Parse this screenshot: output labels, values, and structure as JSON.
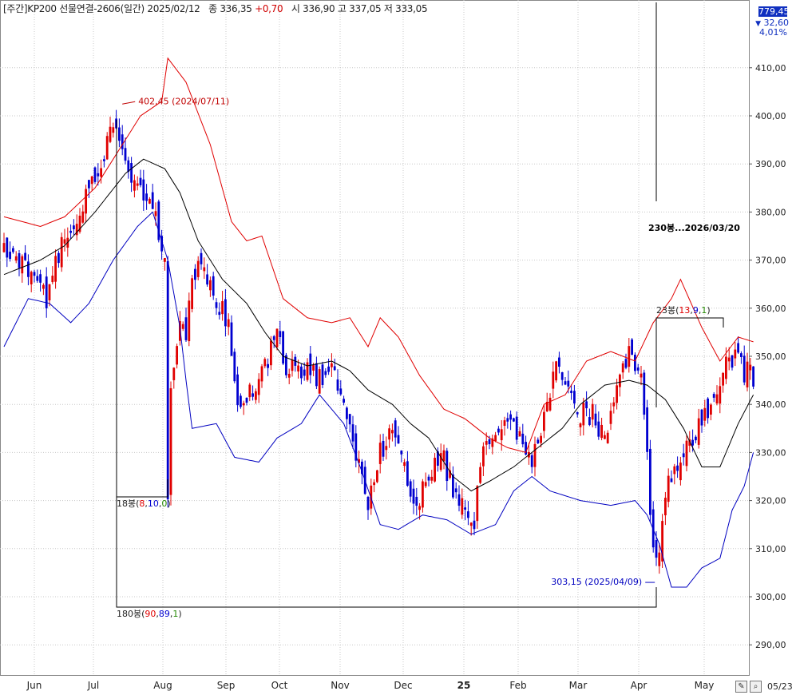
{
  "header": {
    "prefix": "[주간]KP200 선물연결-2606(일간) 2025/02/12",
    "close_label": "종",
    "close": "336,35",
    "change": "+0,70",
    "open_label": "시",
    "open": "336,90",
    "high_label": "고",
    "high": "337,05",
    "low_label": "저",
    "low": "333,05"
  },
  "side_panel": {
    "price_box": "779,45",
    "change": "32,60",
    "change_icon": "triangle-down-icon",
    "pct": "4,01%"
  },
  "footer": {
    "end_date": "05/23",
    "buttons": [
      "pencil-icon",
      "magnifier-icon"
    ]
  },
  "colors": {
    "up": "#e00000",
    "down": "#0000d0",
    "upper_band": "#e00000",
    "lower_band": "#0000c0",
    "middle_band": "#000000",
    "grid": "#c8c8c8",
    "accent": "#1030c0"
  },
  "chart_data": {
    "type": "candlestick",
    "title": "",
    "ylim": [
      285,
      415
    ],
    "y_ticks": [
      "290,00",
      "300,00",
      "310,00",
      "320,00",
      "330,00",
      "340,00",
      "350,00",
      "360,00",
      "370,00",
      "380,00",
      "390,00",
      "400,00",
      "410,00"
    ],
    "x_tick_labels": [
      "Jun",
      "Jul",
      "Aug",
      "Sep",
      "Oct",
      "Nov",
      "Dec",
      "25",
      "Feb",
      "Mar",
      "Apr",
      "May"
    ],
    "grid": true,
    "bollinger_bands": {
      "upper_anchors": [
        [
          0,
          379
        ],
        [
          12,
          377
        ],
        [
          20,
          379
        ],
        [
          30,
          385
        ],
        [
          40,
          395
        ],
        [
          45,
          400
        ],
        [
          52,
          403
        ],
        [
          54,
          412
        ],
        [
          60,
          407
        ],
        [
          68,
          394
        ],
        [
          75,
          378
        ],
        [
          80,
          374
        ],
        [
          85,
          375
        ],
        [
          92,
          362
        ],
        [
          100,
          358
        ],
        [
          108,
          357
        ],
        [
          114,
          358
        ],
        [
          120,
          352
        ],
        [
          124,
          358
        ],
        [
          130,
          354
        ],
        [
          137,
          346
        ],
        [
          145,
          339
        ],
        [
          152,
          337
        ],
        [
          160,
          333
        ],
        [
          166,
          331
        ],
        [
          172,
          330
        ],
        [
          178,
          340
        ],
        [
          185,
          342
        ],
        [
          192,
          349
        ],
        [
          200,
          351
        ],
        [
          208,
          349
        ],
        [
          214,
          357
        ],
        [
          220,
          362
        ],
        [
          223,
          366
        ],
        [
          230,
          356
        ],
        [
          236,
          349
        ],
        [
          242,
          354
        ],
        [
          247,
          353
        ]
      ],
      "middle_anchors": [
        [
          0,
          367
        ],
        [
          12,
          370
        ],
        [
          20,
          373
        ],
        [
          30,
          380
        ],
        [
          40,
          388
        ],
        [
          46,
          391
        ],
        [
          53,
          389
        ],
        [
          58,
          384
        ],
        [
          64,
          374
        ],
        [
          72,
          366
        ],
        [
          80,
          361
        ],
        [
          86,
          355
        ],
        [
          92,
          350
        ],
        [
          100,
          348
        ],
        [
          108,
          349
        ],
        [
          114,
          347
        ],
        [
          120,
          343
        ],
        [
          128,
          340
        ],
        [
          134,
          336
        ],
        [
          140,
          333
        ],
        [
          148,
          325
        ],
        [
          154,
          322
        ],
        [
          160,
          324
        ],
        [
          168,
          327
        ],
        [
          176,
          331
        ],
        [
          184,
          335
        ],
        [
          190,
          340
        ],
        [
          198,
          344
        ],
        [
          206,
          345
        ],
        [
          212,
          344
        ],
        [
          218,
          341
        ],
        [
          224,
          335
        ],
        [
          230,
          327
        ],
        [
          236,
          327
        ],
        [
          242,
          336
        ],
        [
          247,
          342
        ]
      ],
      "lower_anchors": [
        [
          0,
          352
        ],
        [
          8,
          362
        ],
        [
          15,
          361
        ],
        [
          22,
          357
        ],
        [
          28,
          361
        ],
        [
          36,
          370
        ],
        [
          44,
          377
        ],
        [
          49,
          380
        ],
        [
          54,
          370
        ],
        [
          58,
          356
        ],
        [
          60,
          345
        ],
        [
          62,
          335
        ],
        [
          70,
          336
        ],
        [
          76,
          329
        ],
        [
          84,
          328
        ],
        [
          90,
          333
        ],
        [
          98,
          336
        ],
        [
          104,
          342
        ],
        [
          112,
          336
        ],
        [
          118,
          326
        ],
        [
          124,
          315
        ],
        [
          130,
          314
        ],
        [
          138,
          317
        ],
        [
          146,
          316
        ],
        [
          154,
          313
        ],
        [
          162,
          315
        ],
        [
          168,
          322
        ],
        [
          174,
          325
        ],
        [
          180,
          322
        ],
        [
          190,
          320
        ],
        [
          200,
          319
        ],
        [
          208,
          320
        ],
        [
          212,
          317
        ],
        [
          216,
          311
        ],
        [
          220,
          302
        ],
        [
          225,
          302
        ],
        [
          230,
          306
        ],
        [
          236,
          308
        ],
        [
          240,
          318
        ],
        [
          244,
          323
        ],
        [
          247,
          330
        ]
      ]
    },
    "close_anchors": [
      [
        0,
        373
      ],
      [
        8,
        367
      ],
      [
        14,
        362
      ],
      [
        20,
        375
      ],
      [
        24,
        380
      ],
      [
        28,
        384
      ],
      [
        33,
        392
      ],
      [
        36,
        400
      ],
      [
        38,
        394
      ],
      [
        42,
        388
      ],
      [
        46,
        384
      ],
      [
        50,
        378
      ],
      [
        53,
        372
      ],
      [
        54,
        320
      ],
      [
        55,
        342
      ],
      [
        58,
        357
      ],
      [
        60,
        353
      ],
      [
        62,
        368
      ],
      [
        66,
        368
      ],
      [
        70,
        362
      ],
      [
        74,
        356
      ],
      [
        76,
        346
      ],
      [
        78,
        338
      ],
      [
        82,
        344
      ],
      [
        86,
        348
      ],
      [
        90,
        356
      ],
      [
        93,
        347
      ],
      [
        96,
        347
      ],
      [
        100,
        348
      ],
      [
        104,
        345
      ],
      [
        108,
        348
      ],
      [
        112,
        342
      ],
      [
        116,
        330
      ],
      [
        120,
        320
      ],
      [
        124,
        330
      ],
      [
        128,
        335
      ],
      [
        132,
        327
      ],
      [
        136,
        318
      ],
      [
        140,
        325
      ],
      [
        144,
        330
      ],
      [
        148,
        322
      ],
      [
        152,
        320
      ],
      [
        155,
        315
      ],
      [
        158,
        332
      ],
      [
        162,
        334
      ],
      [
        166,
        338
      ],
      [
        170,
        333
      ],
      [
        174,
        327
      ],
      [
        178,
        338
      ],
      [
        182,
        349
      ],
      [
        186,
        344
      ],
      [
        190,
        338
      ],
      [
        194,
        338
      ],
      [
        198,
        332
      ],
      [
        202,
        343
      ],
      [
        206,
        350
      ],
      [
        210,
        346
      ],
      [
        212,
        330
      ],
      [
        214,
        309
      ],
      [
        216,
        307
      ],
      [
        218,
        322
      ],
      [
        222,
        327
      ],
      [
        226,
        332
      ],
      [
        230,
        336
      ],
      [
        234,
        342
      ],
      [
        238,
        348
      ],
      [
        241,
        351
      ],
      [
        244,
        347
      ],
      [
        247,
        346
      ]
    ],
    "annotations": [
      {
        "text": "402,45 (2024/07/11)",
        "color": "#c00000",
        "price": 402.45,
        "bar": 39
      },
      {
        "text": "303,15 (2025/04/09)",
        "color": "#0000c0",
        "price": 303.15,
        "bar": 214
      },
      {
        "text": "230봉...2026/03/20",
        "color": "#000000"
      }
    ],
    "counters": [
      {
        "prefix": "18봉(",
        "a": "8",
        "b": "10",
        "c": "0",
        "suffix": ")"
      },
      {
        "prefix": "180봉(",
        "a": "90",
        "b": "89",
        "c": "1",
        "suffix": ")"
      },
      {
        "prefix": "23봉(",
        "a": "13",
        "b": "9",
        "c": "1",
        "suffix": ")"
      }
    ]
  }
}
